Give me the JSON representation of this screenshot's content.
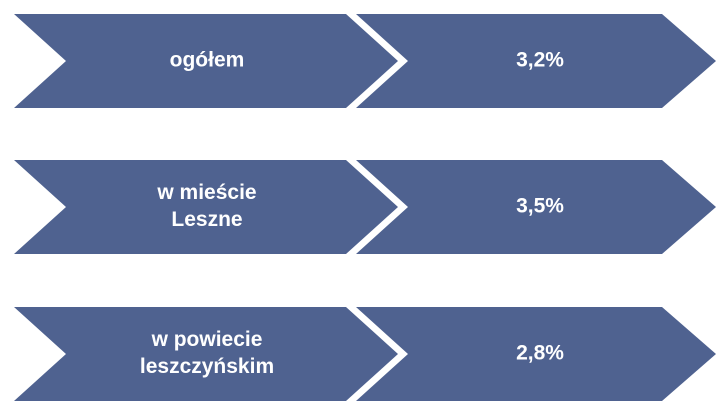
{
  "rows": [
    {
      "label": [
        "ogółem"
      ],
      "value": "3,2%"
    },
    {
      "label": [
        "w mieście",
        "Leszne"
      ],
      "value": "3,5%"
    },
    {
      "label": [
        "w powiecie",
        "leszczyńskim"
      ],
      "value": "2,8%"
    }
  ]
}
